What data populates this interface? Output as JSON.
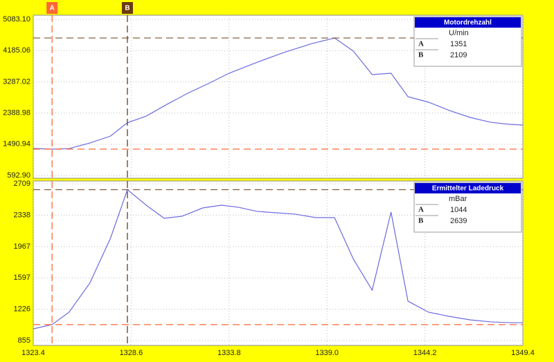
{
  "cursors": [
    {
      "label": "A",
      "x": 1324.4,
      "color": "#ff6633"
    },
    {
      "label": "B",
      "x": 1328.4,
      "color": "#6b3a10"
    }
  ],
  "chart_data": [
    {
      "type": "line",
      "title": "Motordrehzahl",
      "unit": "U/min",
      "cursor_values": [
        1351,
        2109
      ],
      "x": [
        1323.4,
        1324.4,
        1325.3,
        1326.4,
        1327.5,
        1328.4,
        1329.4,
        1330.5,
        1331.6,
        1332.7,
        1333.8,
        1335.2,
        1336.7,
        1338.2,
        1339.4,
        1340.4,
        1341.4,
        1342.4,
        1343.3,
        1344.4,
        1345.5,
        1346.6,
        1347.7,
        1348.7,
        1349.4
      ],
      "series": [
        {
          "name": "Motordrehzahl",
          "color": "#6a6ae0",
          "values": [
            1370,
            1351,
            1367,
            1526,
            1725,
            2109,
            2301,
            2638,
            2957,
            3235,
            3533,
            3831,
            4129,
            4387,
            4546,
            4169,
            3493,
            3533,
            2858,
            2699,
            2461,
            2262,
            2122,
            2063,
            2043
          ]
        }
      ],
      "xlim": [
        1323.4,
        1349.4
      ],
      "ylim": [
        592.9,
        5083.1
      ],
      "yticks": [
        {
          "value": 5083.1,
          "label": "5083.10"
        },
        4185.06,
        3287.02,
        2388.98,
        1490.94,
        {
          "value": 592.9,
          "label": "592.90"
        }
      ],
      "grid": true
    },
    {
      "type": "line",
      "title": "Ermittelter Ladedruck",
      "unit": "mBar",
      "cursor_values": [
        1044,
        2639
      ],
      "x": [
        1323.4,
        1324.4,
        1325.3,
        1326.4,
        1327.5,
        1328.4,
        1329.4,
        1330.35,
        1331.3,
        1332.4,
        1333.4,
        1334.3,
        1335.3,
        1336.3,
        1337.3,
        1338.4,
        1339.4,
        1340.4,
        1341.4,
        1342.4,
        1343.3,
        1344.4,
        1345.5,
        1346.6,
        1347.7,
        1348.7,
        1349.4
      ],
      "series": [
        {
          "name": "Ermittelter Ladedruck",
          "color": "#6a6ae0",
          "values": [
            994,
            1044,
            1190,
            1533,
            2064,
            2639,
            2456,
            2301,
            2325,
            2423,
            2456,
            2431,
            2382,
            2366,
            2350,
            2309,
            2309,
            1819,
            1451,
            2374,
            1321,
            1190,
            1141,
            1100,
            1076,
            1067,
            1067
          ]
        }
      ],
      "xlim": [
        1323.4,
        1349.4
      ],
      "xticks": [
        1323.4,
        1328.6,
        1333.8,
        {
          "value": 1339.0,
          "label": "1339.0"
        },
        1344.2,
        1349.4
      ],
      "ylim": [
        855,
        2709
      ],
      "yticks": [
        2709,
        2338,
        1967,
        1597,
        1226,
        855
      ],
      "grid": true
    }
  ]
}
